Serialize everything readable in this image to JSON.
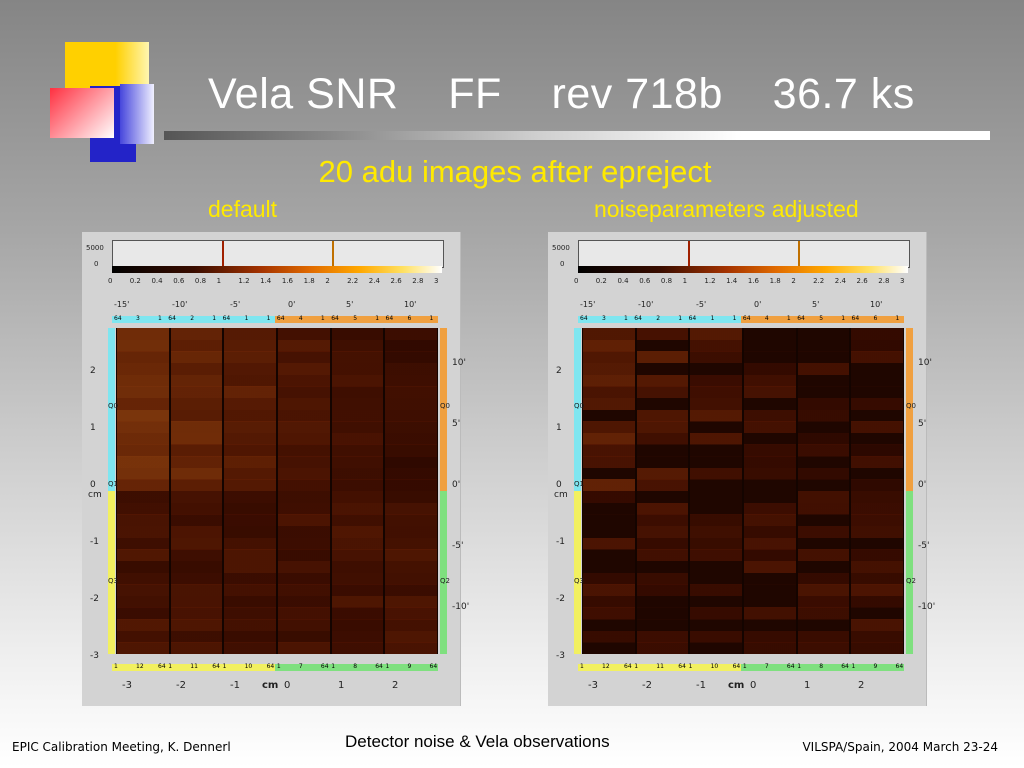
{
  "title": "Vela SNR    FF    rev 718b    36.7 ks",
  "subtitle": "20 adu images after epreject",
  "labels": {
    "left": "default",
    "right": "noiseparameters adjusted"
  },
  "panel": {
    "cbar_top": "5000",
    "cbar_zero": "0",
    "cbar_ticks": [
      "0",
      "0.2",
      "0.4",
      "0.6",
      "0.8",
      "1",
      "1.2",
      "1.4",
      "1.6",
      "1.8",
      "2",
      "2.2",
      "2.4",
      "2.6",
      "2.8",
      "3"
    ],
    "arcmin_ticks": [
      "-15'",
      "-10'",
      "-5'",
      "0'",
      "5'",
      "10'"
    ],
    "cm_left": [
      "2",
      "1",
      "0",
      "-1",
      "-2",
      "-3"
    ],
    "arc_right": [
      "10'",
      "5'",
      "0'",
      "-5'",
      "-10'"
    ],
    "cm_bottom": [
      "-3",
      "-2",
      "-1",
      "0",
      "1",
      "2"
    ],
    "cm_unit": "cm",
    "quad_labels": [
      "Q0",
      "Q1",
      "Q3",
      "Q2"
    ],
    "top_band": [
      "64",
      "3",
      "1",
      "64",
      "2",
      "1",
      "64",
      "1",
      "1",
      "64",
      "4",
      "1",
      "64",
      "5",
      "1",
      "64",
      "6",
      "1"
    ],
    "bottom_band": [
      "1",
      "12",
      "64",
      "1",
      "11",
      "64",
      "1",
      "10",
      "64",
      "1",
      "7",
      "64",
      "1",
      "8",
      "64",
      "1",
      "9",
      "64"
    ]
  },
  "footer": {
    "left": "EPIC Calibration Meeting, K. Dennerl",
    "center": "Detector noise & Vela observations",
    "right": "VILSPA/Spain, 2004 March 23-24"
  },
  "colors": {
    "title": "#ffffff",
    "yellow": "#ffea00",
    "cyan": "#7fe6f0",
    "orange": "#f0a040",
    "green": "#7fe07f",
    "ylw_band": "#f2f060"
  }
}
